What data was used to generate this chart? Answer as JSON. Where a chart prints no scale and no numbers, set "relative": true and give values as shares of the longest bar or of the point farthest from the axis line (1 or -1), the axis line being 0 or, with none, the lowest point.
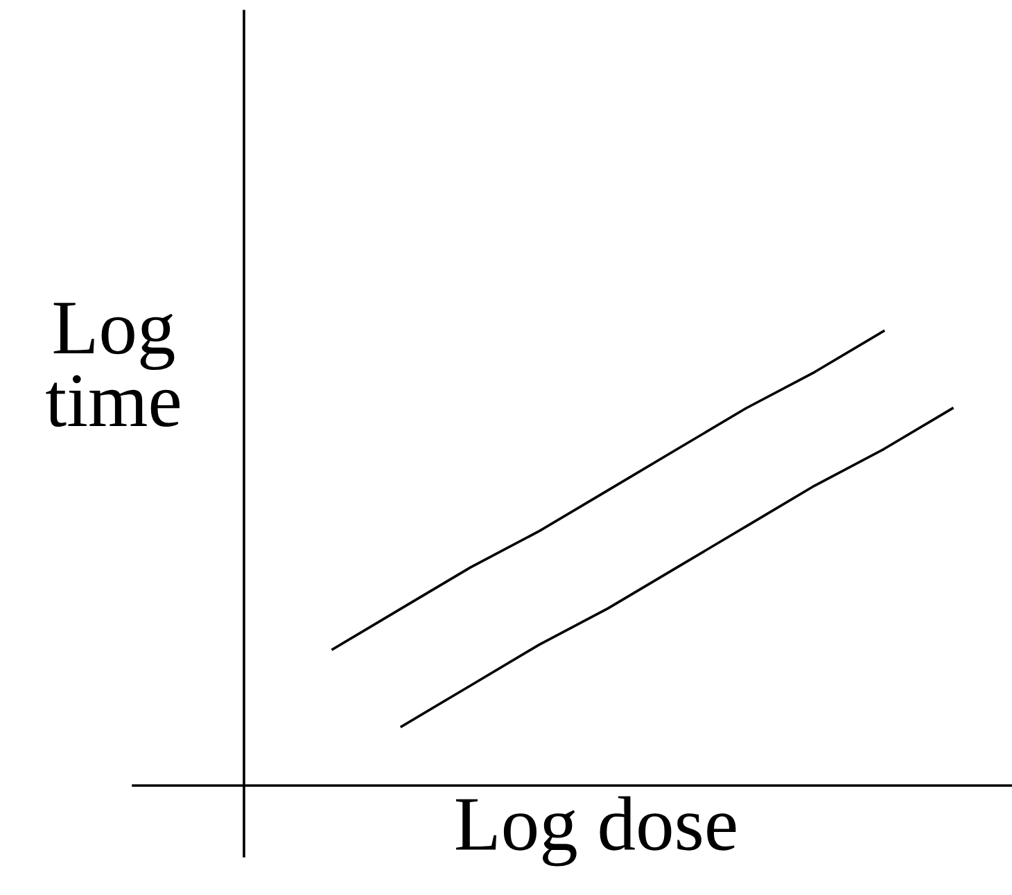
{
  "chart_data": {
    "type": "line",
    "relative": true,
    "xlabel": "Log dose",
    "ylabel": "Log\ntime",
    "categories": [
      null,
      null,
      null,
      null,
      null,
      null,
      null,
      null,
      null,
      null
    ],
    "series": [
      {
        "color": "#000000",
        "values": [
          0.3,
          0.39,
          0.48,
          0.56,
          0.65,
          0.74,
          0.83,
          0.91,
          1.0,
          null
        ]
      },
      {
        "color": "#000000",
        "values": [
          null,
          0.13,
          0.22,
          0.31,
          0.39,
          0.48,
          0.57,
          0.66,
          0.74,
          0.83
        ]
      }
    ]
  }
}
